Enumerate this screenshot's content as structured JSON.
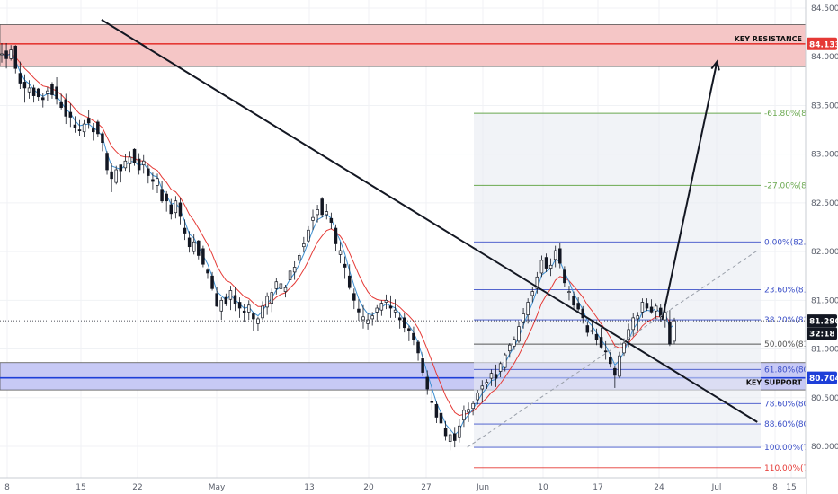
{
  "chart_data": {
    "type": "candlestick",
    "y_axis": {
      "ticks": [
        "84.500",
        "84.000",
        "83.500",
        "83.000",
        "82.500",
        "82.000",
        "81.500",
        "81.000",
        "80.500",
        "80.000"
      ],
      "tick_values": [
        84.5,
        84.0,
        83.5,
        83.0,
        82.5,
        82.0,
        81.5,
        81.0,
        80.5,
        80.0
      ],
      "ylim": [
        79.55,
        84.65
      ]
    },
    "x_axis": {
      "ticks": [
        "8",
        "15",
        "22",
        "May",
        "13",
        "20",
        "27",
        "Jun",
        "10",
        "17",
        "24",
        "Jul",
        "8",
        "15"
      ]
    },
    "price_tags": [
      {
        "text": "84.133",
        "value": 84.133,
        "color": "#e53935"
      },
      {
        "text": "81.290",
        "value": 81.29,
        "color": "#131722"
      },
      {
        "text": "32:18",
        "value": 81.16,
        "color": "#131722"
      },
      {
        "text": "80.704",
        "value": 80.704,
        "color": "#1e3fd8"
      }
    ],
    "zones": [
      {
        "label": "KEY RESISTANCE",
        "top": 84.33,
        "bottom": 83.9,
        "line": 84.133,
        "color": "#e53935",
        "fill": "#f5c6c6"
      },
      {
        "label": "KEY SUPPORT",
        "top": 80.86,
        "bottom": 80.58,
        "line": 80.704,
        "color": "#1e3fd8",
        "fill": "#c7c9f5"
      }
    ],
    "fib_levels": [
      {
        "label": "-61.80%(83",
        "value": 83.42,
        "color": "#6aa84f"
      },
      {
        "label": "-27.00%(82",
        "value": 82.68,
        "color": "#6aa84f"
      },
      {
        "label": "0.00%(82.10",
        "value": 82.1,
        "color": "#3c50c8"
      },
      {
        "label": "23.60%(81.6",
        "value": 81.61,
        "color": "#3c50c8"
      },
      {
        "label": "38.20%(81.2",
        "value": 81.3,
        "color": "#3c50c8"
      },
      {
        "label": "50.00%(81.0",
        "value": 81.05,
        "color": "#555555"
      },
      {
        "label": "61.80%(80.7",
        "value": 80.79,
        "color": "#3c50c8"
      },
      {
        "label": "78.60%(80.4",
        "value": 80.44,
        "color": "#3c50c8"
      },
      {
        "label": "88.60%(80.2",
        "value": 80.23,
        "color": "#3c50c8"
      },
      {
        "label": "100.00%(79",
        "value": 79.99,
        "color": "#3c50c8"
      },
      {
        "label": "110.00%(79",
        "value": 79.78,
        "color": "#e53935"
      }
    ],
    "current_price": 81.29,
    "trendlines": [
      {
        "name": "descending-trendline",
        "x1": 0.126,
        "y1": 84.38,
        "x2": 0.94,
        "y2": 80.25
      },
      {
        "name": "projection-arrow",
        "x1": 0.822,
        "y1": 81.3,
        "x2": 0.89,
        "y2": 83.95
      },
      {
        "name": "fib-anchor-dashed",
        "x1": 0.58,
        "y1": 79.99,
        "x2": 0.94,
        "y2": 82.01
      }
    ],
    "candles": [
      [
        84.02,
        84.14,
        83.94,
        84.03
      ],
      [
        84.06,
        84.14,
        83.88,
        83.98
      ],
      [
        83.98,
        84.12,
        83.96,
        84.07
      ],
      [
        84.11,
        84.12,
        83.83,
        83.88
      ],
      [
        83.83,
        83.95,
        83.67,
        83.73
      ],
      [
        83.74,
        83.82,
        83.53,
        83.68
      ],
      [
        83.64,
        83.76,
        83.57,
        83.68
      ],
      [
        83.68,
        83.71,
        83.53,
        83.6
      ],
      [
        83.67,
        83.68,
        83.55,
        83.59
      ],
      [
        83.58,
        83.63,
        83.48,
        83.56
      ],
      [
        83.62,
        83.69,
        83.55,
        83.65
      ],
      [
        83.72,
        83.74,
        83.57,
        83.61
      ],
      [
        83.69,
        83.79,
        83.51,
        83.57
      ],
      [
        83.53,
        83.62,
        83.46,
        83.48
      ],
      [
        83.56,
        83.62,
        83.31,
        83.39
      ],
      [
        83.43,
        83.52,
        83.28,
        83.38
      ],
      [
        83.3,
        83.39,
        83.22,
        83.27
      ],
      [
        83.25,
        83.35,
        83.19,
        83.24
      ],
      [
        83.23,
        83.35,
        83.18,
        83.31
      ],
      [
        83.37,
        83.45,
        83.26,
        83.32
      ],
      [
        83.26,
        83.32,
        83.14,
        83.23
      ],
      [
        83.33,
        83.35,
        83.18,
        83.21
      ],
      [
        83.21,
        83.23,
        83.03,
        83.12
      ],
      [
        83.01,
        83.03,
        82.79,
        82.84
      ],
      [
        82.82,
        82.91,
        82.61,
        82.75
      ],
      [
        82.71,
        82.88,
        82.69,
        82.84
      ],
      [
        82.89,
        82.89,
        82.71,
        82.83
      ],
      [
        82.86,
        83.0,
        82.83,
        82.93
      ],
      [
        82.9,
        83.03,
        82.81,
        82.97
      ],
      [
        83.05,
        83.06,
        82.88,
        82.91
      ],
      [
        82.95,
        83.01,
        82.79,
        82.84
      ],
      [
        82.89,
        82.99,
        82.8,
        82.93
      ],
      [
        82.85,
        82.89,
        82.7,
        82.78
      ],
      [
        82.74,
        82.81,
        82.64,
        82.72
      ],
      [
        82.68,
        82.8,
        82.6,
        82.75
      ],
      [
        82.64,
        82.73,
        82.5,
        82.52
      ],
      [
        82.59,
        82.62,
        82.41,
        82.52
      ],
      [
        82.48,
        82.54,
        82.33,
        82.39
      ],
      [
        82.4,
        82.57,
        82.34,
        82.52
      ],
      [
        82.5,
        82.55,
        82.28,
        82.36
      ],
      [
        82.24,
        82.33,
        82.12,
        82.19
      ],
      [
        82.14,
        82.21,
        81.99,
        82.05
      ],
      [
        82.0,
        82.18,
        81.97,
        82.1
      ],
      [
        82.11,
        82.12,
        81.92,
        81.96
      ],
      [
        82.03,
        82.06,
        81.84,
        81.87
      ],
      [
        81.81,
        81.83,
        81.72,
        81.78
      ],
      [
        81.75,
        81.79,
        81.6,
        81.62
      ],
      [
        81.57,
        81.64,
        81.43,
        81.44
      ],
      [
        81.39,
        81.53,
        81.3,
        81.5
      ],
      [
        81.53,
        81.57,
        81.44,
        81.46
      ],
      [
        81.51,
        81.65,
        81.4,
        81.6
      ],
      [
        81.55,
        81.64,
        81.39,
        81.46
      ],
      [
        81.48,
        81.53,
        81.32,
        81.42
      ],
      [
        81.39,
        81.46,
        81.28,
        81.37
      ],
      [
        81.38,
        81.5,
        81.3,
        81.45
      ],
      [
        81.36,
        81.38,
        81.19,
        81.31
      ],
      [
        81.26,
        81.33,
        81.18,
        81.31
      ],
      [
        81.32,
        81.49,
        81.3,
        81.44
      ],
      [
        81.43,
        81.58,
        81.35,
        81.54
      ],
      [
        81.47,
        81.62,
        81.38,
        81.58
      ],
      [
        81.62,
        81.73,
        81.56,
        81.69
      ],
      [
        81.62,
        81.69,
        81.52,
        81.67
      ],
      [
        81.59,
        81.66,
        81.53,
        81.63
      ],
      [
        81.71,
        81.86,
        81.63,
        81.8
      ],
      [
        81.79,
        81.9,
        81.71,
        81.84
      ],
      [
        81.91,
        81.98,
        81.86,
        81.96
      ],
      [
        82.05,
        82.15,
        81.99,
        82.08
      ],
      [
        82.11,
        82.26,
        82.09,
        82.22
      ],
      [
        82.32,
        82.43,
        82.22,
        82.35
      ],
      [
        82.38,
        82.48,
        82.3,
        82.43
      ],
      [
        82.54,
        82.56,
        82.35,
        82.38
      ],
      [
        82.38,
        82.49,
        82.33,
        82.41
      ],
      [
        82.34,
        82.4,
        82.23,
        82.3
      ],
      [
        82.24,
        82.28,
        82.01,
        82.08
      ],
      [
        81.97,
        82.1,
        81.88,
        82.01
      ],
      [
        81.87,
        81.95,
        81.72,
        81.84
      ],
      [
        81.75,
        81.87,
        81.61,
        81.63
      ],
      [
        81.57,
        81.62,
        81.41,
        81.5
      ],
      [
        81.41,
        81.51,
        81.29,
        81.38
      ],
      [
        81.3,
        81.45,
        81.21,
        81.33
      ],
      [
        81.26,
        81.36,
        81.2,
        81.3
      ],
      [
        81.31,
        81.38,
        81.24,
        81.34
      ],
      [
        81.38,
        81.45,
        81.28,
        81.42
      ],
      [
        81.4,
        81.5,
        81.34,
        81.47
      ],
      [
        81.48,
        81.56,
        81.41,
        81.5
      ],
      [
        81.44,
        81.55,
        81.32,
        81.42
      ],
      [
        81.38,
        81.51,
        81.32,
        81.4
      ],
      [
        81.32,
        81.38,
        81.21,
        81.3
      ],
      [
        81.32,
        81.37,
        81.17,
        81.22
      ],
      [
        81.21,
        81.24,
        81.08,
        81.19
      ],
      [
        81.16,
        81.23,
        81.04,
        81.1
      ],
      [
        81.07,
        81.09,
        80.88,
        80.96
      ],
      [
        80.9,
        80.97,
        80.72,
        80.76
      ],
      [
        80.71,
        80.78,
        80.53,
        80.59
      ],
      [
        80.46,
        80.59,
        80.37,
        80.45
      ],
      [
        80.43,
        80.46,
        80.24,
        80.3
      ],
      [
        80.34,
        80.4,
        80.2,
        80.24
      ],
      [
        80.19,
        80.26,
        80.06,
        80.11
      ],
      [
        80.05,
        80.19,
        79.96,
        80.12
      ],
      [
        80.13,
        80.2,
        79.99,
        80.06
      ],
      [
        80.09,
        80.28,
        80.04,
        80.21
      ],
      [
        80.27,
        80.42,
        80.2,
        80.37
      ],
      [
        80.35,
        80.45,
        80.25,
        80.38
      ],
      [
        80.39,
        80.47,
        80.32,
        80.44
      ],
      [
        80.48,
        80.58,
        80.43,
        80.55
      ],
      [
        80.59,
        80.68,
        80.45,
        80.62
      ],
      [
        80.64,
        80.69,
        80.59,
        80.66
      ],
      [
        80.7,
        80.79,
        80.62,
        80.75
      ],
      [
        80.74,
        80.84,
        80.61,
        80.7
      ],
      [
        80.77,
        80.87,
        80.71,
        80.85
      ],
      [
        80.81,
        80.96,
        80.77,
        80.94
      ],
      [
        80.98,
        81.06,
        80.91,
        81.04
      ],
      [
        81.03,
        81.13,
        80.99,
        81.1
      ],
      [
        81.08,
        81.28,
        81.06,
        81.23
      ],
      [
        81.27,
        81.42,
        81.21,
        81.36
      ],
      [
        81.35,
        81.52,
        81.26,
        81.48
      ],
      [
        81.55,
        81.64,
        81.48,
        81.59
      ],
      [
        81.62,
        81.79,
        81.57,
        81.74
      ],
      [
        81.78,
        81.96,
        81.74,
        81.91
      ],
      [
        81.94,
        81.98,
        81.79,
        81.83
      ],
      [
        81.83,
        81.93,
        81.75,
        81.86
      ],
      [
        81.92,
        82.06,
        81.84,
        82.01
      ],
      [
        82.03,
        82.09,
        81.83,
        81.88
      ],
      [
        81.81,
        81.85,
        81.64,
        81.68
      ],
      [
        81.58,
        81.65,
        81.5,
        81.59
      ],
      [
        81.54,
        81.59,
        81.4,
        81.45
      ],
      [
        81.47,
        81.53,
        81.37,
        81.41
      ],
      [
        81.41,
        81.44,
        81.26,
        81.32
      ],
      [
        81.24,
        81.28,
        81.13,
        81.17
      ],
      [
        81.18,
        81.29,
        81.15,
        81.19
      ],
      [
        81.15,
        81.21,
        81.04,
        81.1
      ],
      [
        81.12,
        81.22,
        81.0,
        81.02
      ],
      [
        80.98,
        81.08,
        80.89,
        80.97
      ],
      [
        80.91,
        80.97,
        80.81,
        80.85
      ],
      [
        80.8,
        80.82,
        80.6,
        80.73
      ],
      [
        80.72,
        80.97,
        80.7,
        80.93
      ],
      [
        80.96,
        81.11,
        80.93,
        81.06
      ],
      [
        81.1,
        81.26,
        81.02,
        81.2
      ],
      [
        81.2,
        81.37,
        81.13,
        81.32
      ],
      [
        81.31,
        81.38,
        81.19,
        81.34
      ],
      [
        81.38,
        81.52,
        81.32,
        81.48
      ],
      [
        81.47,
        81.52,
        81.39,
        81.42
      ],
      [
        81.43,
        81.51,
        81.36,
        81.38
      ],
      [
        81.39,
        81.47,
        81.3,
        81.44
      ],
      [
        81.42,
        81.46,
        81.28,
        81.33
      ],
      [
        81.3,
        81.43,
        81.22,
        81.38
      ],
      [
        81.28,
        81.4,
        81.03,
        81.05
      ],
      [
        81.08,
        81.32,
        81.05,
        81.29
      ]
    ]
  }
}
